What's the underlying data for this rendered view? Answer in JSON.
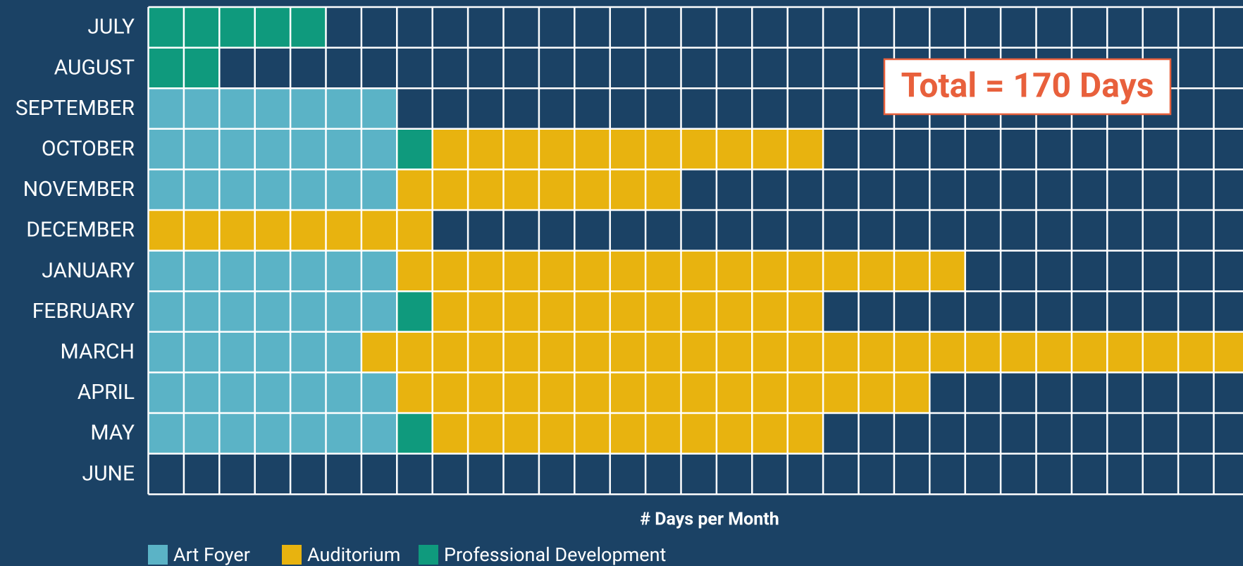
{
  "chart_data": {
    "type": "waffle_bar",
    "categories": [
      "JULY",
      "AUGUST",
      "SEPTEMBER",
      "OCTOBER",
      "NOVEMBER",
      "DECEMBER",
      "JANUARY",
      "FEBRUARY",
      "MARCH",
      "APRIL",
      "MAY",
      "JUNE"
    ],
    "series": [
      {
        "name": "Art Foyer",
        "color": "#5bb3c6",
        "values": [
          0,
          0,
          7,
          7,
          7,
          0,
          7,
          7,
          6,
          7,
          7,
          0
        ]
      },
      {
        "name": "Auditorium",
        "color": "#e8b30f",
        "values": [
          0,
          0,
          0,
          11,
          8,
          8,
          16,
          11,
          25,
          15,
          11,
          0
        ]
      },
      {
        "name": "Professional Development",
        "color": "#0f9a7d",
        "values": [
          5,
          2,
          0,
          1,
          0,
          0,
          0,
          1,
          0,
          0,
          1,
          0
        ]
      }
    ],
    "xlabel": "# Days per Month",
    "annotation": "Total = 170 Days"
  }
}
